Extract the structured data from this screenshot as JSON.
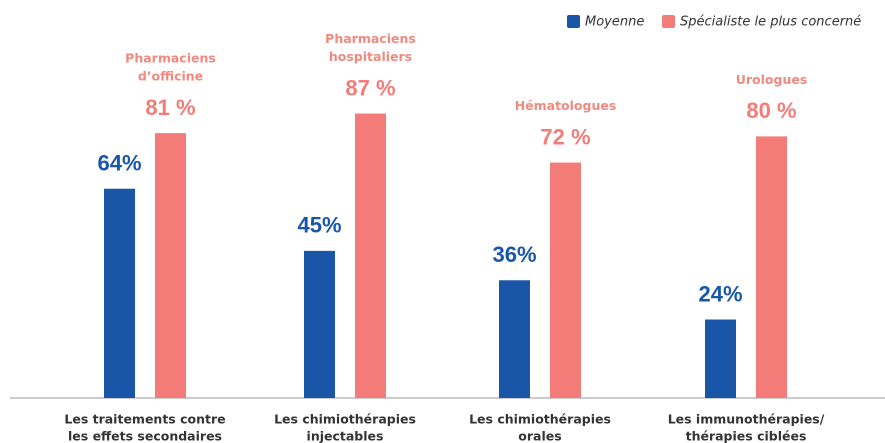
{
  "chart_data": {
    "type": "bar",
    "categories": [
      [
        "Les traitements contre",
        "les effets secondaires"
      ],
      [
        "Les chimiothérapies",
        "injectables"
      ],
      [
        "Les chimiothérapies",
        "orales"
      ],
      [
        "Les immunothérapies/",
        "thérapies ciblées"
      ]
    ],
    "series": [
      {
        "name": "Moyenne",
        "color": "#1a56a8",
        "values": [
          64,
          45,
          36,
          24
        ],
        "value_labels": [
          "64%",
          "45%",
          "36%",
          "24%"
        ]
      },
      {
        "name": "Spécialiste le plus concerné",
        "color": "#f47c78",
        "values": [
          81,
          87,
          72,
          80
        ],
        "value_labels": [
          "81 %",
          "87 %",
          "72 %",
          "80 %"
        ]
      }
    ],
    "annotations": [
      [
        "Pharmaciens",
        "d’officine"
      ],
      [
        "Pharmaciens",
        "hospitaliers"
      ],
      [
        "Hématologues"
      ],
      [
        "Urologues"
      ]
    ],
    "legend": "top-right"
  }
}
